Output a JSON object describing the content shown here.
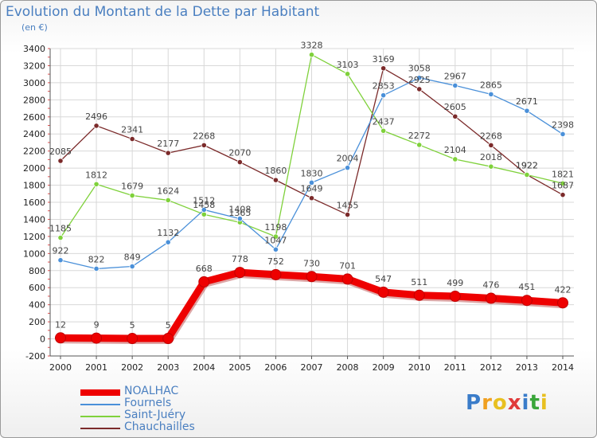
{
  "header": {
    "title": "Evolution du Montant de la Dette par Habitant",
    "unit": "(en €)"
  },
  "logo": {
    "letters": [
      "P",
      "r",
      "o",
      "x",
      "i",
      "t",
      "i"
    ],
    "colors": [
      "#3a7cc9",
      "#f0a020",
      "#e8c020",
      "#e03b3b",
      "#3a7cc9",
      "#3aa63a",
      "#e8c020"
    ]
  },
  "chart_data": {
    "type": "line",
    "title": "Evolution du Montant de la Dette par Habitant",
    "ylabel": "(en €)",
    "xlabel": "",
    "x": [
      "2000",
      "2001",
      "2002",
      "2003",
      "2004",
      "2005",
      "2006",
      "2007",
      "2008",
      "2009",
      "2010",
      "2011",
      "2012",
      "2013",
      "2014"
    ],
    "ylim": [
      -200,
      3400
    ],
    "yticks": [
      -200,
      0,
      200,
      400,
      600,
      800,
      1000,
      1200,
      1400,
      1600,
      1800,
      2000,
      2200,
      2400,
      2600,
      2800,
      3000,
      3200,
      3400
    ],
    "grid": true,
    "legend_position": "bottom-left",
    "series": [
      {
        "name": "NOALHAC",
        "color": "#ee0000",
        "values": [
          12,
          9,
          5,
          5,
          668,
          778,
          752,
          730,
          701,
          547,
          511,
          499,
          476,
          451,
          422
        ]
      },
      {
        "name": "Fournels",
        "color": "#4a90d9",
        "values": [
          922,
          822,
          849,
          1132,
          1512,
          1408,
          1047,
          1830,
          2004,
          2853,
          3058,
          2967,
          2865,
          2671,
          2398
        ]
      },
      {
        "name": "Saint-Juéry",
        "color": "#7fd13b",
        "values": [
          1185,
          1812,
          1679,
          1624,
          1458,
          1365,
          1198,
          3328,
          3103,
          2437,
          2272,
          2104,
          2018,
          1922,
          1821
        ]
      },
      {
        "name": "Chauchailles",
        "color": "#7b2a2a",
        "values": [
          2085,
          2496,
          2341,
          2177,
          2268,
          2070,
          1860,
          1649,
          1455,
          3169,
          2925,
          2605,
          2268,
          1922,
          1687
        ]
      }
    ]
  }
}
